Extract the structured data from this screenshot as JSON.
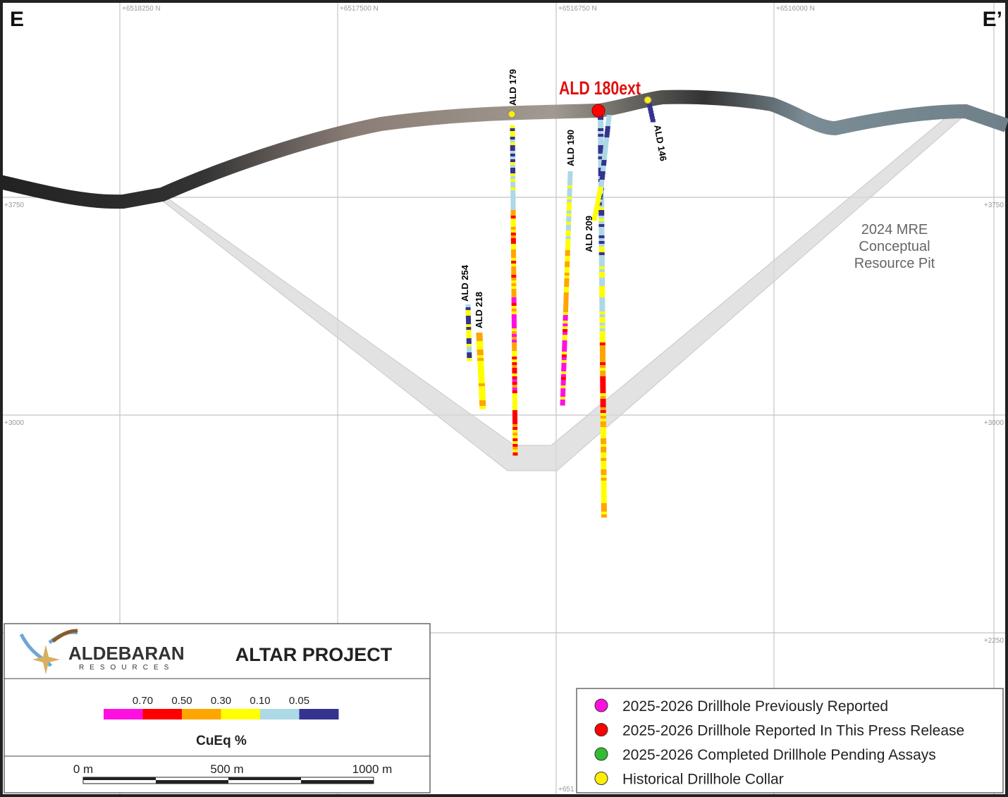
{
  "section": {
    "left_label": "E",
    "right_label": "E’"
  },
  "grid": {
    "northings": [
      "+6518250 N",
      "+6517500 N",
      "+6516750 N",
      "+6516000 N"
    ],
    "elevations_left": [
      "+3750",
      "+3000"
    ],
    "elevations_right": [
      "+3750",
      "+3000",
      "+2250"
    ],
    "bottom_partial": "+651"
  },
  "drillholes": [
    "ALD 179",
    "ALD 190",
    "ALD 209",
    "ALD 146",
    "ALD 254",
    "ALD 218"
  ],
  "highlight_hole": "ALD 180ext",
  "pit_label": [
    "2024 MRE",
    "Conceptual",
    "Resource Pit"
  ],
  "logo": {
    "name": "ALDEBARAN",
    "sub": "RESOURCES"
  },
  "project": "ALTAR PROJECT",
  "color_scale": {
    "labels": [
      "0.70",
      "0.50",
      "0.30",
      "0.10",
      "0.05"
    ],
    "colors": [
      "#ff10e0",
      "#ff0000",
      "#ffa500",
      "#ffff00",
      "#add8e6",
      "#35338f"
    ],
    "title": "CuEq %"
  },
  "scale_bar": {
    "labels": [
      "0 m",
      "500 m",
      "1000 m"
    ]
  },
  "legend": [
    {
      "label": "2025-2026 Drillhole Previously Reported",
      "color": "#ff10e0"
    },
    {
      "label": "2025-2026 Drillhole Reported In This Press Release",
      "color": "#ff0000"
    },
    {
      "label": "2025-2026 Completed Drillhole Pending Assays",
      "color": "#33bb33"
    },
    {
      "label": "Historical Drillhole Collar",
      "color": "#ffee00"
    }
  ]
}
